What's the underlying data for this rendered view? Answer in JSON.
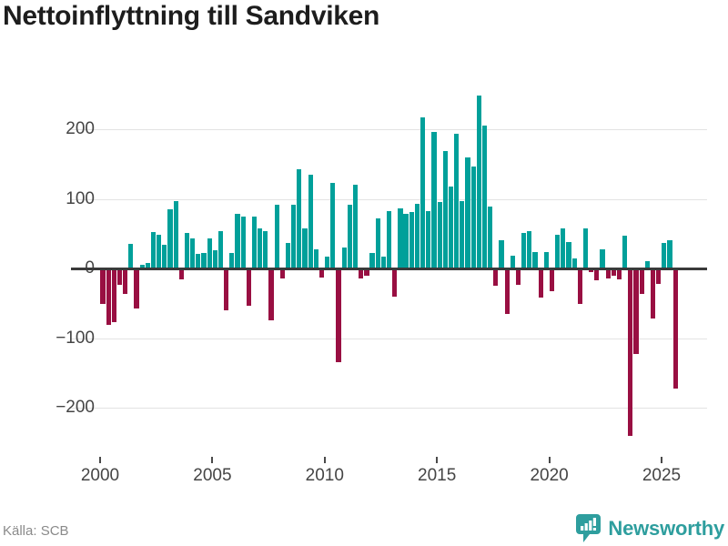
{
  "title": "Nettoinflyttning till Sandviken",
  "source": "Källa: SCB",
  "branding": {
    "name": "Newsworthy",
    "logo_icon": "bar-chart-speech-bubble-icon"
  },
  "colors": {
    "positive_bar": "#00a09a",
    "negative_bar": "#990f42",
    "gridline": "#e3e3e3",
    "zero_line": "#3a3a3a",
    "axis_text": "#454545",
    "title_text": "#1d1d1d",
    "source_text": "#8a8a8a",
    "brand_teal": "#2e9e9e"
  },
  "chart_data": {
    "type": "bar",
    "title": "Nettoinflyttning till Sandviken",
    "frequency": "quarterly",
    "x_start": "2000 Q1",
    "x_end": "2025 Q3",
    "start_year": 2000,
    "ylim": [
      -260,
      270
    ],
    "y_ticks": [
      200,
      100,
      0,
      -100,
      -200
    ],
    "x_ticks": [
      2000,
      2005,
      2010,
      2015,
      2020,
      2025
    ],
    "grid": "horizontal",
    "legend": "none",
    "positive_color": "#00a09a",
    "negative_color": "#990f42",
    "values": [
      -51,
      -81,
      -77,
      -24,
      -36,
      35,
      -58,
      5,
      8,
      52,
      48,
      34,
      85,
      97,
      -16,
      51,
      43,
      21,
      22,
      43,
      26,
      53,
      -60,
      22,
      78,
      75,
      -54,
      74,
      58,
      54,
      -74,
      91,
      -15,
      36,
      92,
      143,
      58,
      135,
      27,
      -13,
      17,
      123,
      -134,
      30,
      91,
      120,
      -15,
      -10,
      22,
      72,
      17,
      82,
      -41,
      86,
      78,
      81,
      93,
      217,
      82,
      196,
      96,
      168,
      117,
      193,
      97,
      160,
      147,
      248,
      205,
      89,
      -25,
      40,
      -66,
      18,
      -23,
      51,
      53,
      24,
      -42,
      23,
      -33,
      49,
      58,
      38,
      14,
      -51,
      58,
      -5,
      -17,
      28,
      -14,
      -11,
      -16,
      47,
      -240,
      -123,
      -37,
      11,
      -72,
      -22,
      37,
      41,
      -172
    ]
  }
}
